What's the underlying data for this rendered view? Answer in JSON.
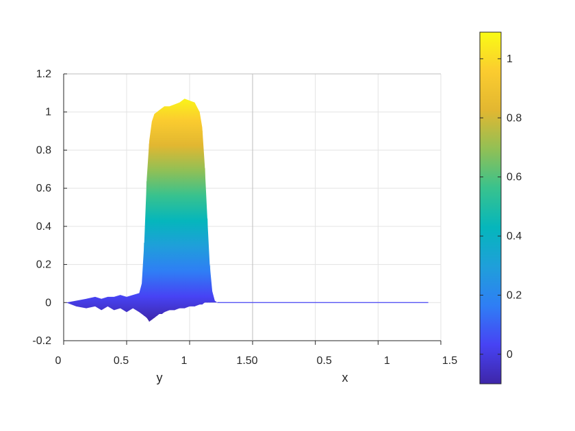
{
  "chart_data": {
    "type": "surface",
    "xlabel": "x",
    "ylabel": "y",
    "x_axis_tick_labels": [
      "0",
      "0.5",
      "1",
      "1.5"
    ],
    "y_axis_tick_labels": [
      "0",
      "0.5",
      "1",
      "1.5"
    ],
    "corner_tick_label": "1.50",
    "z_ticks": [
      -0.2,
      0,
      0.2,
      0.4,
      0.6,
      0.8,
      1,
      1.2
    ],
    "zlim": [
      -0.2,
      1.2
    ],
    "ylim": [
      0,
      1.5
    ],
    "colorbar": {
      "ticks": [
        0,
        0.2,
        0.4,
        0.6,
        0.8,
        1
      ],
      "range": [
        -0.1,
        1.09
      ],
      "colormap": [
        "#3e26a8",
        "#4743f4",
        "#2f7ef5",
        "#1f9fda",
        "#05b6bc",
        "#38c28e",
        "#91c055",
        "#e2b731",
        "#fbcc2f",
        "#f9fb15"
      ]
    },
    "grid": true,
    "profile": {
      "y": [
        0.02,
        0.1,
        0.18,
        0.25,
        0.3,
        0.35,
        0.4,
        0.45,
        0.5,
        0.55,
        0.6,
        0.62,
        0.64,
        0.66,
        0.68,
        0.7,
        0.72,
        0.74,
        0.76,
        0.78,
        0.8,
        0.84,
        0.88,
        0.92,
        0.96,
        1.0,
        1.04,
        1.08,
        1.1,
        1.12,
        1.14,
        1.16,
        1.18,
        1.2,
        1.22,
        1.25,
        1.35,
        1.45
      ],
      "peak": [
        0.0,
        0.01,
        0.02,
        0.03,
        0.02,
        0.03,
        0.03,
        0.04,
        0.03,
        0.04,
        0.05,
        0.1,
        0.32,
        0.65,
        0.85,
        0.95,
        0.99,
        1.0,
        1.01,
        1.02,
        1.03,
        1.03,
        1.04,
        1.05,
        1.07,
        1.06,
        1.05,
        1.0,
        0.92,
        0.72,
        0.45,
        0.2,
        0.06,
        0.01,
        0.0,
        0.0,
        0.0,
        0.0
      ],
      "trough": [
        0.0,
        -0.02,
        -0.03,
        -0.02,
        -0.04,
        -0.02,
        -0.04,
        -0.03,
        -0.05,
        -0.03,
        -0.05,
        -0.06,
        -0.07,
        -0.08,
        -0.1,
        -0.09,
        -0.08,
        -0.07,
        -0.06,
        -0.06,
        -0.05,
        -0.04,
        -0.04,
        -0.03,
        -0.03,
        -0.02,
        -0.02,
        -0.01,
        -0.01,
        0.0,
        0.0,
        0.0,
        0.0,
        0.0,
        0.0,
        0.0,
        0.0,
        0.0
      ]
    },
    "tail": {
      "y_end": 1.45,
      "x_end": 1.4,
      "z": 0.0
    }
  }
}
